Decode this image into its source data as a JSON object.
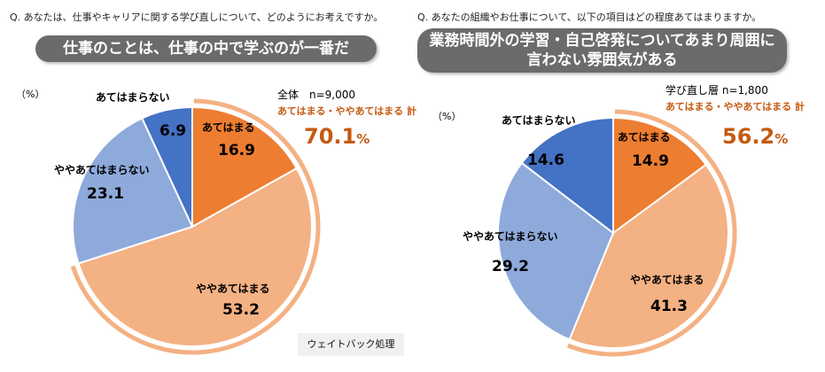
{
  "left": {
    "question": "Q. あなたは、仕事やキャリアに関する学び直しについて、どのようにお考えですか。",
    "banner": "仕事のことは、仕事の中で学ぶのが一番だ",
    "unit": "（%）",
    "sample": "全体　n=9,000",
    "sum_label": "あてはまる・ややあてはまる 計",
    "total": "70.1",
    "total_unit": "%",
    "note": "ウェイトバック処理"
  },
  "right": {
    "question": "Q. あなたの組織やお仕事について、以下の項目はどの程度あてはまりますか。",
    "banner_line1": "業務時間外の学習・自己啓発についてあまり周囲に",
    "banner_line2": "言わない雰囲気がある",
    "unit": "（%）",
    "sample": "学び直し層 n=1,800",
    "sum_label": "あてはまる・ややあてはまる 計",
    "total": "56.2",
    "total_unit": "%"
  },
  "colors": {
    "apply": "#ed7d31",
    "somewhat_apply": "#f4b183",
    "somewhat_not": "#8eaadb",
    "not_apply": "#4472c4",
    "highlight_ring": "#f4b183",
    "banner": "#6b6b6b",
    "accent_text": "#c55a11"
  },
  "chart_data": [
    {
      "type": "pie",
      "title": "仕事のことは、仕事の中で学ぶのが一番だ",
      "unit": "%",
      "start": "12 o'clock",
      "direction": "clockwise",
      "slices": [
        {
          "label": "あてはまる",
          "value": 16.9,
          "color": "#ed7d31"
        },
        {
          "label": "ややあてはまる",
          "value": 53.2,
          "color": "#f4b183"
        },
        {
          "label": "ややあてはまらない",
          "value": 23.1,
          "color": "#8eaadb"
        },
        {
          "label": "あてはまらない",
          "value": 6.9,
          "color": "#4472c4"
        }
      ],
      "highlight_total": 70.1
    },
    {
      "type": "pie",
      "title": "業務時間外の学習・自己啓発についてあまり周囲に言わない雰囲気がある",
      "unit": "%",
      "start": "12 o'clock",
      "direction": "clockwise",
      "slices": [
        {
          "label": "あてはまる",
          "value": 14.9,
          "color": "#ed7d31"
        },
        {
          "label": "ややあてはまる",
          "value": 41.3,
          "color": "#f4b183"
        },
        {
          "label": "ややあてはまらない",
          "value": 29.2,
          "color": "#8eaadb"
        },
        {
          "label": "あてはまらない",
          "value": 14.6,
          "color": "#4472c4"
        }
      ],
      "highlight_total": 56.2
    }
  ]
}
